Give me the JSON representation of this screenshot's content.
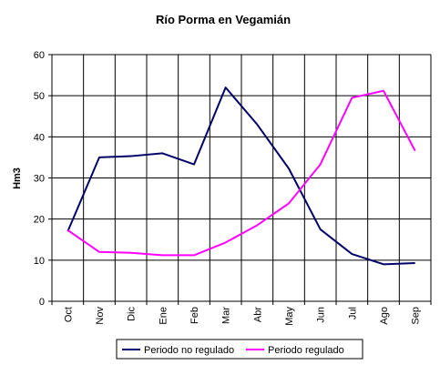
{
  "chart_data": {
    "type": "line",
    "title": "Río Porma en Vegamián",
    "xlabel": "",
    "ylabel": "Hm3",
    "ylim": [
      0,
      60
    ],
    "yticks": [
      0,
      10,
      20,
      30,
      40,
      50,
      60
    ],
    "grid": true,
    "legend_position": "bottom",
    "categories": [
      "Oct",
      "Nov",
      "Dic",
      "Ene",
      "Feb",
      "Mar",
      "Abr",
      "May",
      "Jun",
      "Jul",
      "Ago",
      "Sep"
    ],
    "series": [
      {
        "name": "Periodo no regulado",
        "color": "#000066",
        "values": [
          17,
          35,
          35.3,
          36,
          33.3,
          52,
          43,
          32.3,
          17.5,
          11.5,
          9,
          9.3
        ]
      },
      {
        "name": "Periodo regulado",
        "color": "#ff00ff",
        "values": [
          17.3,
          12,
          11.8,
          11.2,
          11.2,
          14.3,
          18.5,
          23.8,
          33.3,
          49.5,
          51.2,
          36.6
        ]
      }
    ]
  }
}
